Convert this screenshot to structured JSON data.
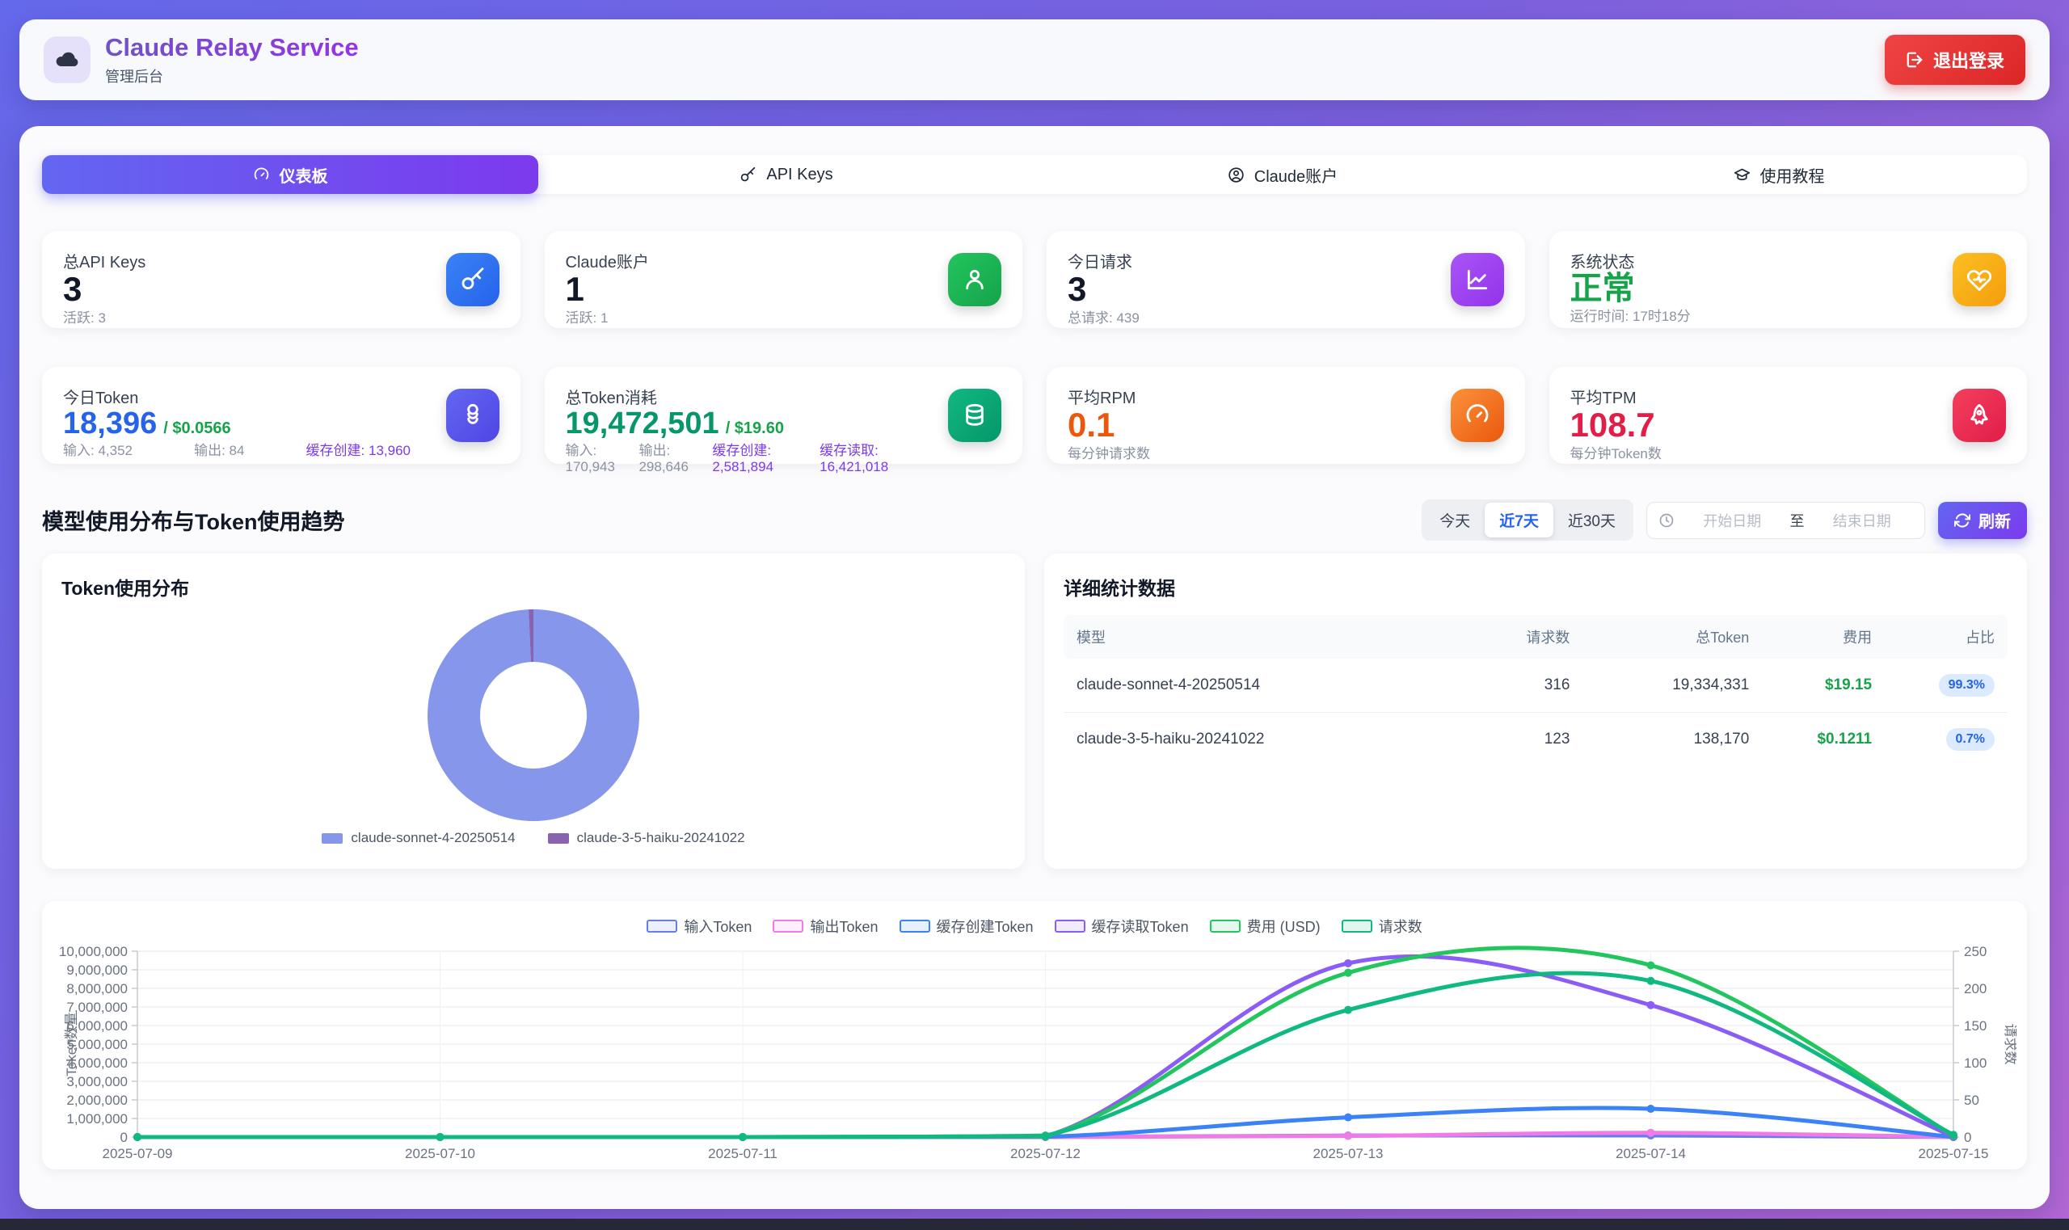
{
  "app": {
    "title": "Claude Relay Service",
    "subtitle": "管理后台",
    "logout_label": "退出登录"
  },
  "tabs": [
    {
      "label": "仪表板",
      "icon": "gauge-icon",
      "active": true
    },
    {
      "label": "API Keys",
      "icon": "key-icon",
      "active": false
    },
    {
      "label": "Claude账户",
      "icon": "user-circle-icon",
      "active": false
    },
    {
      "label": "使用教程",
      "icon": "graduation-cap-icon",
      "active": false
    }
  ],
  "stats": {
    "api_keys": {
      "label": "总API Keys",
      "value": "3",
      "sub": "活跃: 3"
    },
    "accounts": {
      "label": "Claude账户",
      "value": "1",
      "sub": "活跃: 1"
    },
    "today_requests": {
      "label": "今日请求",
      "value": "3",
      "sub": "总请求: 439"
    },
    "system": {
      "label": "系统状态",
      "value": "正常",
      "sub": "运行时间: 17时18分"
    },
    "today_token": {
      "label": "今日Token",
      "value": "18,396",
      "cost": "/ $0.0566",
      "input": "输入: 4,352",
      "output": "输出: 84",
      "cache_create": "缓存创建: 13,960"
    },
    "total_token": {
      "label": "总Token消耗",
      "value": "19,472,501",
      "cost": "/ $19.60",
      "input": "输入: 170,943",
      "output": "输出: 298,646",
      "cache_create": "缓存创建: 2,581,894",
      "cache_read": "缓存读取: 16,421,018"
    },
    "rpm": {
      "label": "平均RPM",
      "value": "0.1",
      "sub": "每分钟请求数"
    },
    "tpm": {
      "label": "平均TPM",
      "value": "108.7",
      "sub": "每分钟Token数"
    }
  },
  "section": {
    "title": "模型使用分布与Token使用趋势"
  },
  "filters": {
    "today": "今天",
    "last7": "近7天",
    "last30": "近30天",
    "selected": "近7天",
    "start_placeholder": "开始日期",
    "to": "至",
    "end_placeholder": "结束日期",
    "refresh": "刷新"
  },
  "distribution": {
    "title": "Token使用分布"
  },
  "table": {
    "title": "详细统计数据",
    "headers": [
      "模型",
      "请求数",
      "总Token",
      "费用",
      "占比"
    ],
    "rows": [
      {
        "model": "claude-sonnet-4-20250514",
        "requests": "316",
        "tokens": "19,334,331",
        "cost": "$19.15",
        "share": "99.3%"
      },
      {
        "model": "claude-3-5-haiku-20241022",
        "requests": "123",
        "tokens": "138,170",
        "cost": "$0.1211",
        "share": "0.7%"
      }
    ]
  },
  "chart_data": [
    {
      "type": "pie",
      "title": "Token使用分布",
      "labels": [
        "claude-sonnet-4-20250514",
        "claude-3-5-haiku-20241022"
      ],
      "values": [
        99.3,
        0.7
      ],
      "unit": "percent",
      "colors": [
        "#8696ea",
        "#8a63b0"
      ],
      "inner_radius_ratio": 0.5
    },
    {
      "type": "line",
      "x": [
        "2025-07-09",
        "2025-07-10",
        "2025-07-11",
        "2025-07-12",
        "2025-07-13",
        "2025-07-14",
        "2025-07-15"
      ],
      "left_axis": {
        "label": "Token数量",
        "range": [
          0,
          10000000
        ],
        "tick_step": 1000000
      },
      "right_axis": {
        "label": "请求数",
        "range": [
          0,
          250
        ],
        "tick_step": 50
      },
      "grid": true,
      "legend_position": "top",
      "series": [
        {
          "name": "输入Token",
          "axis": "left",
          "color": "#667eea",
          "values": [
            0,
            0,
            0,
            4000,
            80000,
            85000,
            2000
          ]
        },
        {
          "name": "输出Token",
          "axis": "left",
          "color": "#f07ae8",
          "values": [
            0,
            0,
            0,
            6000,
            60000,
            230000,
            4000
          ]
        },
        {
          "name": "缓存创建Token",
          "axis": "left",
          "color": "#3b82f6",
          "values": [
            0,
            0,
            0,
            15000,
            1060000,
            1520000,
            8000
          ]
        },
        {
          "name": "缓存读取Token",
          "axis": "left",
          "color": "#8b5cf6",
          "values": [
            0,
            0,
            0,
            40000,
            9350000,
            7100000,
            15000
          ]
        },
        {
          "name": "费用 (USD)",
          "axis": "right",
          "color": "#22c55e",
          "values": [
            0,
            0,
            0,
            1,
            221,
            231,
            2
          ]
        },
        {
          "name": "请求数",
          "axis": "right",
          "color": "#10b981",
          "values": [
            0,
            0,
            0,
            2,
            171,
            210,
            3
          ]
        }
      ]
    }
  ]
}
